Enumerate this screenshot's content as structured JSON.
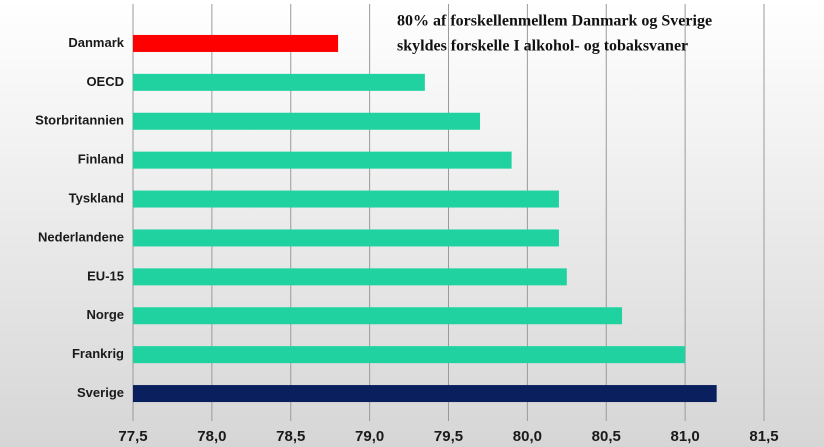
{
  "chart_data": {
    "type": "barh",
    "annotation": [
      "80%  af forskellenmellem Danmark og Sverige",
      "skyldes forskelle I alkohol- og tobaksvaner"
    ],
    "categories": [
      "Danmark",
      "OECD",
      "Storbritannien",
      "Finland",
      "Tyskland",
      "Nederlandene",
      "EU-15",
      "Norge",
      "Frankrig",
      "Sverige"
    ],
    "values": [
      78.8,
      79.35,
      79.7,
      79.9,
      80.2,
      80.2,
      80.25,
      80.6,
      81.0,
      81.2
    ],
    "colors": [
      "#ff0000",
      "#20d2a0",
      "#20d2a0",
      "#20d2a0",
      "#20d2a0",
      "#20d2a0",
      "#20d2a0",
      "#20d2a0",
      "#20d2a0",
      "#0a1f5e"
    ],
    "xlim": [
      77.5,
      81.5
    ],
    "xticks": [
      {
        "value": 77.5,
        "label": "77,5"
      },
      {
        "value": 78.0,
        "label": "78,0"
      },
      {
        "value": 78.5,
        "label": "78,5"
      },
      {
        "value": 79.0,
        "label": "79,0"
      },
      {
        "value": 79.5,
        "label": "79,5"
      },
      {
        "value": 80.0,
        "label": "80,0"
      },
      {
        "value": 80.5,
        "label": "80,5"
      },
      {
        "value": 81.0,
        "label": "81,0"
      },
      {
        "value": 81.5,
        "label": "81,5"
      }
    ],
    "grid": true
  }
}
